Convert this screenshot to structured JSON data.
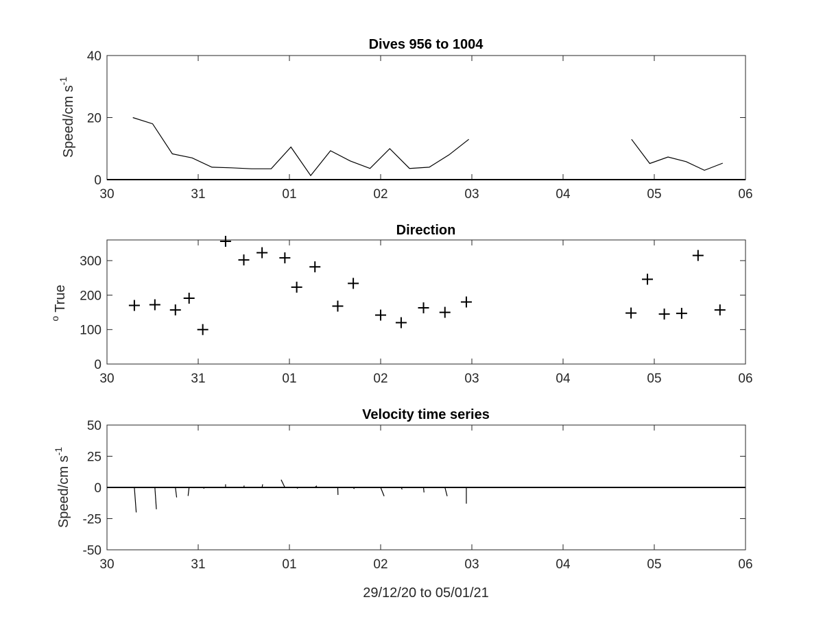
{
  "chart_data": [
    {
      "type": "line",
      "title": "Dives 956 to 1004",
      "ylabel": "Speed/cm s",
      "ylabel_exponent": "-1",
      "xlim": [
        "2020-12-30",
        "2021-01-06"
      ],
      "ylim": [
        0,
        40
      ],
      "xticks": [
        "2020-12-30",
        "2020-12-31",
        "2021-01-01",
        "2021-01-02",
        "2021-01-03",
        "2021-01-04",
        "2021-01-05",
        "2021-01-06"
      ],
      "xtick_labels": [
        "30",
        "31",
        "01",
        "02",
        "03",
        "04",
        "05",
        "06"
      ],
      "yticks": [
        0,
        20,
        40
      ],
      "ytick_labels": [
        "0",
        "20",
        "40"
      ],
      "zero_line": true,
      "segments": [
        [
          {
            "x": "2020-12-30 06:48",
            "y": 20
          },
          {
            "x": "2020-12-30 12:00",
            "y": 18
          },
          {
            "x": "2020-12-30 17:12",
            "y": 8.3
          },
          {
            "x": "2020-12-30 22:24",
            "y": 7
          },
          {
            "x": "2020-12-31 03:36",
            "y": 4
          },
          {
            "x": "2020-12-31 08:48",
            "y": 3.8
          },
          {
            "x": "2020-12-31 14:00",
            "y": 3.5
          },
          {
            "x": "2020-12-31 19:12",
            "y": 3.5
          },
          {
            "x": "2021-01-01 00:24",
            "y": 10.5
          },
          {
            "x": "2021-01-01 05:36",
            "y": 1.3
          },
          {
            "x": "2021-01-01 10:48",
            "y": 9.3
          },
          {
            "x": "2021-01-01 16:00",
            "y": 6
          },
          {
            "x": "2021-01-01 21:12",
            "y": 3.6
          },
          {
            "x": "2021-01-02 02:24",
            "y": 10
          },
          {
            "x": "2021-01-02 07:36",
            "y": 3.6
          },
          {
            "x": "2021-01-02 12:48",
            "y": 4
          },
          {
            "x": "2021-01-02 18:00",
            "y": 8
          },
          {
            "x": "2021-01-02 23:12",
            "y": 13
          }
        ],
        [
          {
            "x": "2021-01-04 18:00",
            "y": 13
          },
          {
            "x": "2021-01-04 22:48",
            "y": 5.2
          },
          {
            "x": "2021-01-05 03:36",
            "y": 7.3
          },
          {
            "x": "2021-01-05 08:24",
            "y": 5.8
          },
          {
            "x": "2021-01-05 13:12",
            "y": 3
          },
          {
            "x": "2021-01-05 18:00",
            "y": 5.3
          }
        ]
      ]
    },
    {
      "type": "scatter",
      "title": "Direction",
      "ylabel": "True",
      "ylabel_prefix": "o",
      "marker": "+",
      "xlim": [
        "2020-12-30",
        "2021-01-06"
      ],
      "ylim": [
        0,
        360
      ],
      "xticks": [
        "2020-12-30",
        "2020-12-31",
        "2021-01-01",
        "2021-01-02",
        "2021-01-03",
        "2021-01-04",
        "2021-01-05",
        "2021-01-06"
      ],
      "xtick_labels": [
        "30",
        "31",
        "01",
        "02",
        "03",
        "04",
        "05",
        "06"
      ],
      "yticks": [
        0,
        100,
        200,
        300
      ],
      "ytick_labels": [
        "0",
        "100",
        "200",
        "300"
      ],
      "points": [
        {
          "x": "2020-12-30 07:12",
          "y": 170
        },
        {
          "x": "2020-12-30 12:36",
          "y": 172
        },
        {
          "x": "2020-12-30 18:00",
          "y": 157
        },
        {
          "x": "2020-12-30 21:36",
          "y": 191
        },
        {
          "x": "2020-12-31 01:12",
          "y": 100
        },
        {
          "x": "2020-12-31 07:12",
          "y": 356
        },
        {
          "x": "2020-12-31 12:00",
          "y": 302
        },
        {
          "x": "2020-12-31 16:48",
          "y": 323
        },
        {
          "x": "2020-12-31 22:48",
          "y": 308
        },
        {
          "x": "2021-01-01 01:55",
          "y": 223
        },
        {
          "x": "2021-01-01 06:43",
          "y": 282
        },
        {
          "x": "2021-01-01 12:43",
          "y": 168
        },
        {
          "x": "2021-01-01 16:48",
          "y": 234
        },
        {
          "x": "2021-01-02 00:00",
          "y": 142
        },
        {
          "x": "2021-01-02 05:24",
          "y": 120
        },
        {
          "x": "2021-01-02 11:17",
          "y": 163
        },
        {
          "x": "2021-01-02 16:55",
          "y": 150
        },
        {
          "x": "2021-01-02 22:33",
          "y": 180
        },
        {
          "x": "2021-01-04 17:53",
          "y": 148
        },
        {
          "x": "2021-01-04 22:12",
          "y": 246
        },
        {
          "x": "2021-01-05 02:38",
          "y": 145
        },
        {
          "x": "2021-01-05 07:12",
          "y": 147
        },
        {
          "x": "2021-01-05 11:31",
          "y": 315
        },
        {
          "x": "2021-01-05 17:17",
          "y": 157
        }
      ]
    },
    {
      "type": "stick",
      "title": "Velocity time series",
      "ylabel": "Speed/cm s",
      "ylabel_exponent": "-1",
      "xlabel": "29/12/20 to 05/01/21",
      "xlim": [
        "2020-12-30",
        "2021-01-06"
      ],
      "ylim": [
        -50,
        50
      ],
      "xticks": [
        "2020-12-30",
        "2020-12-31",
        "2021-01-01",
        "2021-01-02",
        "2021-01-03",
        "2021-01-04",
        "2021-01-05",
        "2021-01-06"
      ],
      "xtick_labels": [
        "30",
        "31",
        "01",
        "02",
        "03",
        "04",
        "05",
        "06"
      ],
      "yticks": [
        -50,
        -25,
        0,
        25,
        50
      ],
      "ytick_labels": [
        "-50",
        "-25",
        "0",
        "25",
        "50"
      ],
      "zero_line": true,
      "sticks": [
        {
          "x": "2020-12-30 07:12",
          "u": 1.5,
          "v": -20
        },
        {
          "x": "2020-12-30 12:36",
          "u": 1.2,
          "v": -17.5
        },
        {
          "x": "2020-12-30 18:00",
          "u": 1.0,
          "v": -8
        },
        {
          "x": "2020-12-30 21:36",
          "u": -0.8,
          "v": -6.8
        },
        {
          "x": "2020-12-31 01:12",
          "u": 1.2,
          "v": -0.8
        },
        {
          "x": "2020-12-31 07:12",
          "u": 0.0,
          "v": 2.5
        },
        {
          "x": "2020-12-31 12:00",
          "u": 0.3,
          "v": 1.5
        },
        {
          "x": "2020-12-31 16:48",
          "u": 0.5,
          "v": 2.5
        },
        {
          "x": "2020-12-31 22:48",
          "u": -3,
          "v": 6.2
        },
        {
          "x": "2021-01-01 01:55",
          "u": 0.8,
          "v": -0.9
        },
        {
          "x": "2021-01-01 06:43",
          "u": 1.5,
          "v": 1.3
        },
        {
          "x": "2021-01-01 12:43",
          "u": 0.2,
          "v": -6
        },
        {
          "x": "2021-01-01 16:48",
          "u": 0.8,
          "v": -1.2
        },
        {
          "x": "2021-01-02 00:00",
          "u": 2.8,
          "v": -7
        },
        {
          "x": "2021-01-02 05:24",
          "u": 0.8,
          "v": -1.6
        },
        {
          "x": "2021-01-02 11:17",
          "u": 0.4,
          "v": -4
        },
        {
          "x": "2021-01-02 16:55",
          "u": 1.8,
          "v": -7
        },
        {
          "x": "2021-01-02 22:33",
          "u": 0.0,
          "v": -13
        }
      ]
    }
  ]
}
